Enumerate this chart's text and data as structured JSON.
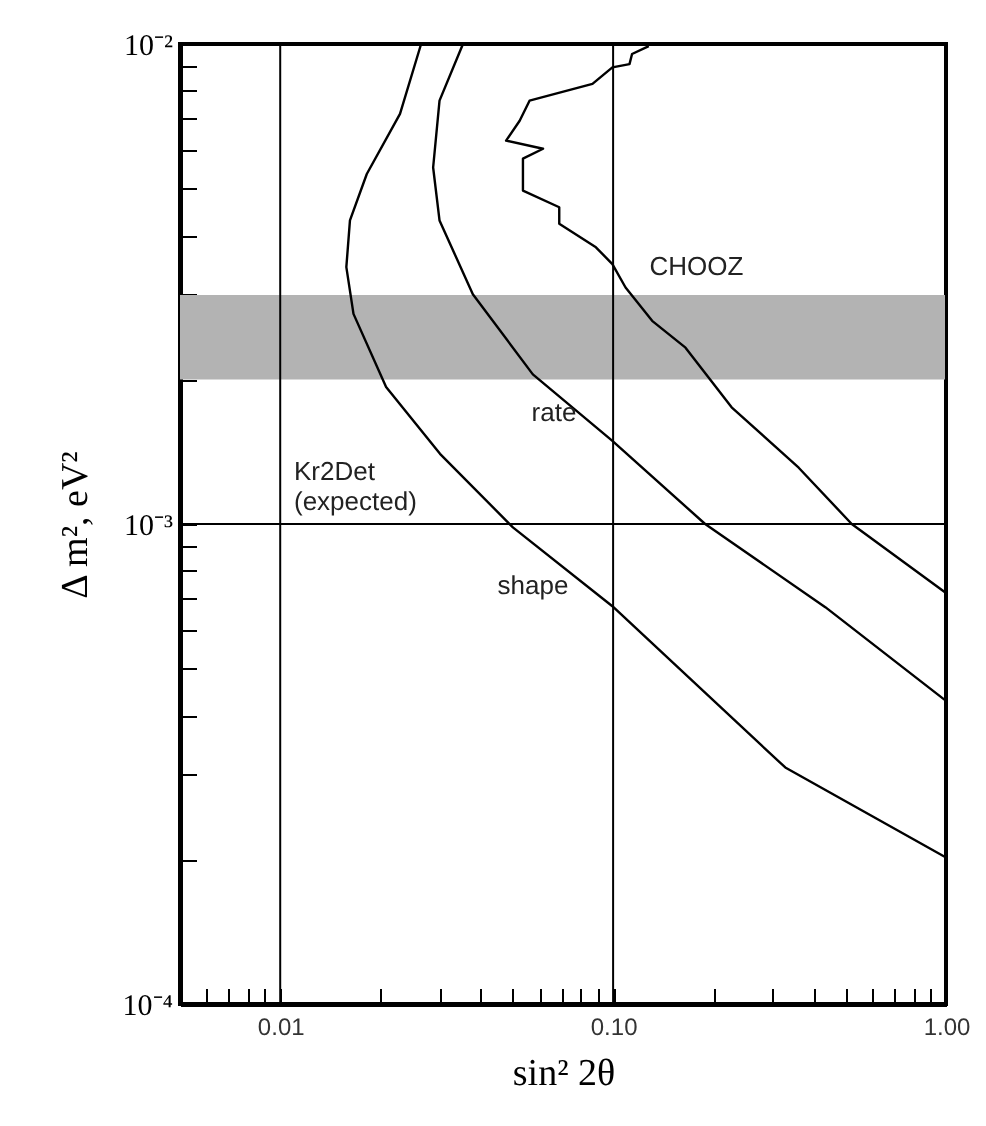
{
  "chart_data": {
    "type": "line",
    "xlabel": "sin² 2θ",
    "ylabel": "Δ m², eV²",
    "annotations": [
      "Kr2Det\n(expected)"
    ],
    "log": "xy",
    "grid": true,
    "legend": false,
    "marker": "none",
    "line_style": "solid",
    "xlim": [
      0.005,
      1
    ],
    "ylim": [
      0.0001,
      0.01
    ],
    "xticks": [
      {
        "value": 0.006,
        "label": null
      },
      {
        "value": 0.007,
        "label": null
      },
      {
        "value": 0.008,
        "label": null
      },
      {
        "value": 0.009,
        "label": null
      },
      {
        "value": 0.01,
        "label": "0.01"
      },
      {
        "value": 0.02,
        "label": null
      },
      {
        "value": 0.03,
        "label": null
      },
      {
        "value": 0.04,
        "label": null
      },
      {
        "value": 0.05,
        "label": null
      },
      {
        "value": 0.06,
        "label": null
      },
      {
        "value": 0.07,
        "label": null
      },
      {
        "value": 0.08,
        "label": null
      },
      {
        "value": 0.09,
        "label": null
      },
      {
        "value": 0.1,
        "label": "0.10"
      },
      {
        "value": 0.2,
        "label": null
      },
      {
        "value": 0.3,
        "label": null
      },
      {
        "value": 0.4,
        "label": null
      },
      {
        "value": 0.5,
        "label": null
      },
      {
        "value": 0.6,
        "label": null
      },
      {
        "value": 0.7,
        "label": null
      },
      {
        "value": 0.8,
        "label": null
      },
      {
        "value": 0.9,
        "label": null
      },
      {
        "value": 1,
        "label": "1.00"
      }
    ],
    "yticks": [
      {
        "value": 0.0001,
        "label": "10⁻⁴"
      },
      {
        "value": 0.0002,
        "label": null
      },
      {
        "value": 0.0003,
        "label": null
      },
      {
        "value": 0.0004,
        "label": null
      },
      {
        "value": 0.0005,
        "label": null
      },
      {
        "value": 0.0006,
        "label": null
      },
      {
        "value": 0.0007,
        "label": null
      },
      {
        "value": 0.0008,
        "label": null
      },
      {
        "value": 0.0009,
        "label": null
      },
      {
        "value": 0.001,
        "label": "10⁻³"
      },
      {
        "value": 0.002,
        "label": null
      },
      {
        "value": 0.003,
        "label": null
      },
      {
        "value": 0.004,
        "label": null
      },
      {
        "value": 0.005,
        "label": null
      },
      {
        "value": 0.006,
        "label": null
      },
      {
        "value": 0.007,
        "label": null
      },
      {
        "value": 0.008,
        "label": null
      },
      {
        "value": 0.009,
        "label": null
      },
      {
        "value": 0.01,
        "label": "10⁻²"
      }
    ],
    "bands": [
      {
        "axis": "y",
        "from": 0.002,
        "to": 0.003,
        "color": "#b3b3b3"
      }
    ],
    "series": [
      {
        "name": "CHOOZ",
        "color": "#000000",
        "x": [
          0.128,
          0.114,
          0.112,
          0.0995,
          0.0867,
          0.0561,
          0.0524,
          0.0477,
          0.0616,
          0.0536,
          0.0536,
          0.0689,
          0.0689,
          0.0888,
          0.0995,
          0.109,
          0.131,
          0.165,
          0.227,
          0.361,
          0.521,
          1
        ],
        "values": [
          0.0099,
          0.00953,
          0.00908,
          0.00894,
          0.00826,
          0.00762,
          0.00692,
          0.00629,
          0.00605,
          0.00577,
          0.00495,
          0.00457,
          0.00422,
          0.00377,
          0.00348,
          0.00311,
          0.00265,
          0.00233,
          0.00175,
          0.00131,
          0.001,
          0.000718
        ]
      },
      {
        "name": "rate",
        "color": "#000000",
        "x": [
          0.0354,
          0.0301,
          0.0288,
          0.0301,
          0.0379,
          0.0574,
          0.0995,
          0.189,
          0.434,
          1
        ],
        "values": [
          0.01,
          0.00762,
          0.00553,
          0.00429,
          0.00301,
          0.00205,
          0.00149,
          0.001,
          0.000671,
          0.000428
        ]
      },
      {
        "name": "shape",
        "color": "#000000",
        "x": [
          0.0265,
          0.0229,
          0.0182,
          0.0162,
          0.0158,
          0.0166,
          0.0208,
          0.0302,
          0.05,
          0.0995,
          0.329,
          1
        ],
        "values": [
          0.01,
          0.00715,
          0.00536,
          0.00429,
          0.00343,
          0.00274,
          0.00193,
          0.0014,
          0.000984,
          0.000674,
          0.000311,
          0.000202
        ]
      }
    ]
  }
}
